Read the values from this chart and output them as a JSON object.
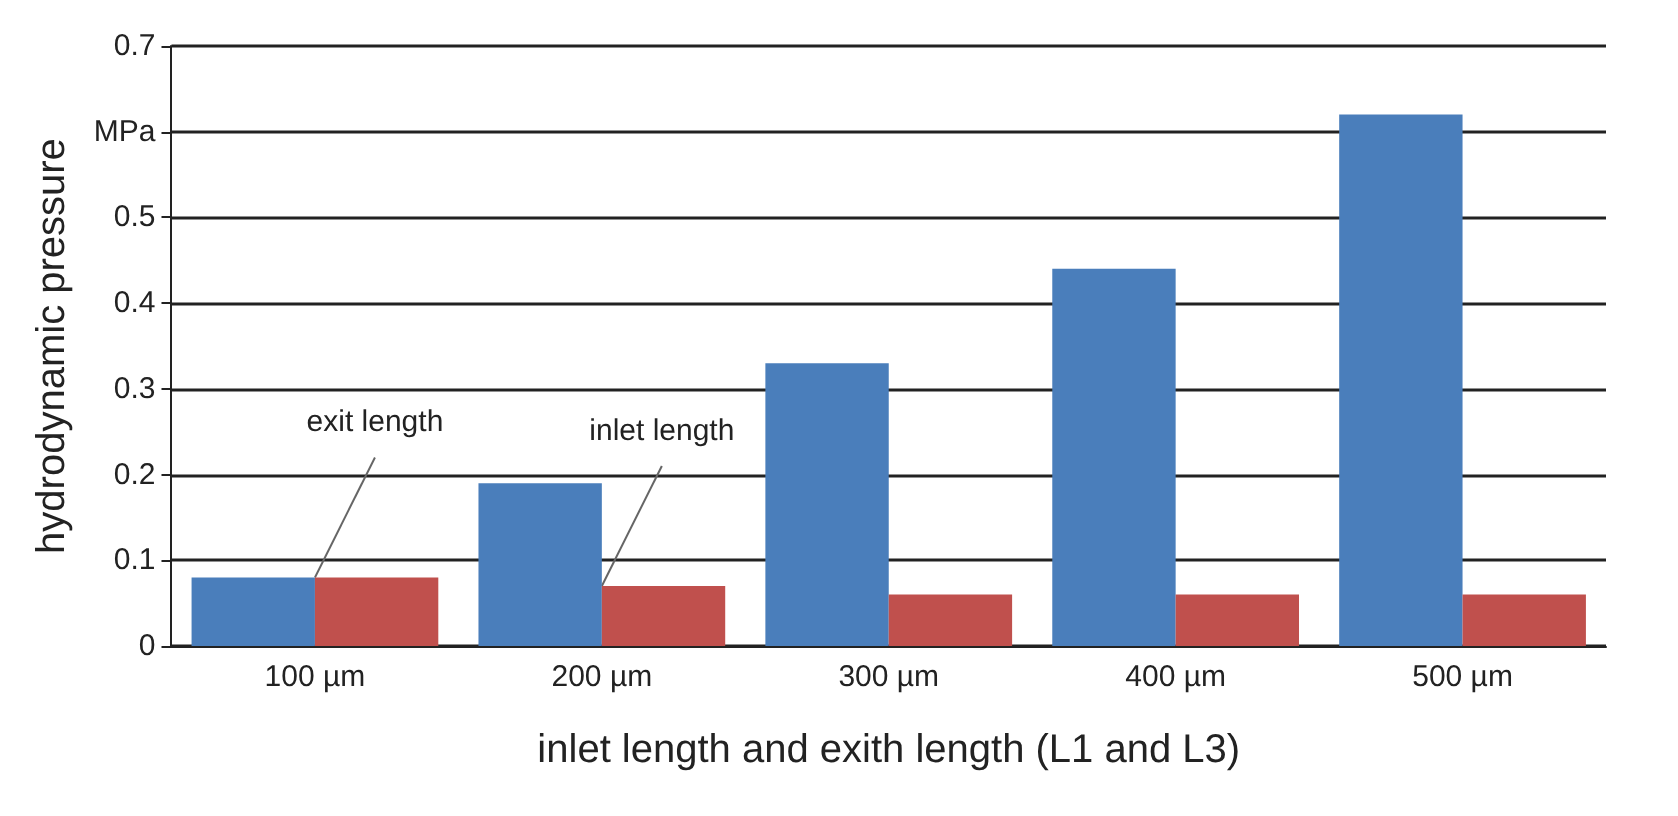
{
  "chart_data": {
    "type": "bar",
    "xlabel": "inlet length and exith length (L1 and L3)",
    "ylabel": "hydrodynamic pressure",
    "categories": [
      "100 µm",
      "200 µm",
      "300 µm",
      "400 µm",
      "500 µm"
    ],
    "series": [
      {
        "color": "#4a7ebb",
        "values": [
          0.08,
          0.19,
          0.33,
          0.44,
          0.62
        ]
      },
      {
        "color": "#c0504d",
        "values": [
          0.08,
          0.07,
          0.06,
          0.06,
          0.06
        ]
      }
    ],
    "ylim": [
      0,
      0.7
    ],
    "yticks": [
      0,
      0.1,
      0.2,
      0.3,
      0.4,
      0.5,
      {
        "value": 0.6,
        "label": "MPa"
      },
      0.7
    ],
    "grid": "y",
    "annotations": [
      {
        "text": "exit length",
        "x": "100 µm",
        "y": 0.08
      },
      {
        "text": "inlet length",
        "x": "200 µm",
        "y": 0.07
      }
    ]
  }
}
